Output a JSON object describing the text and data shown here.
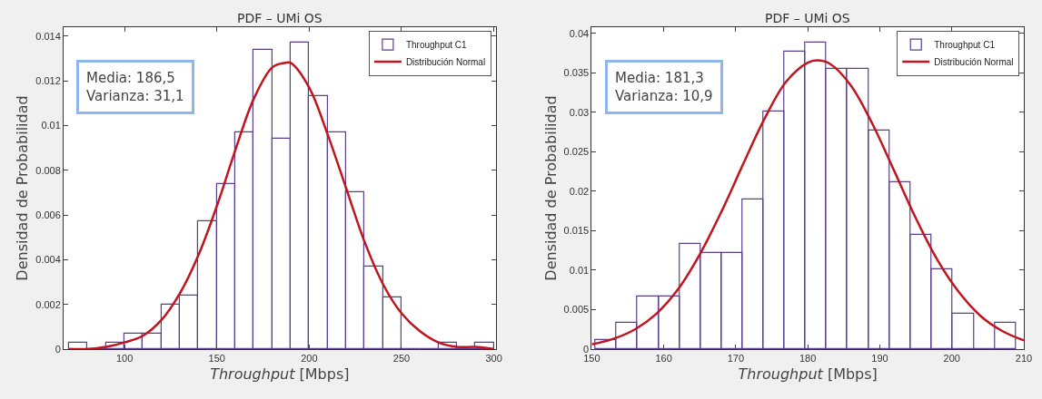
{
  "chart_data": [
    {
      "type": "histogram",
      "title": "PDF – UMi OS",
      "xlabel": "Throughput [Mbps]",
      "ylabel": "Densidad de Probabilidad",
      "annotations": [
        "Media: 186,5\nVarianza: 31,1"
      ],
      "xlim": [
        67,
        301
      ],
      "ylim": [
        0,
        0.0144
      ],
      "xticks": [
        100,
        150,
        200,
        250,
        300
      ],
      "yticks": [
        0,
        0.002,
        0.004,
        0.006,
        0.008,
        0.01,
        0.012,
        0.014
      ],
      "grid": false,
      "legend": "top right",
      "series": [
        {
          "name": "Throughput C1",
          "type": "histogram",
          "color": "#5b3f8f",
          "bins": [
            70,
            80,
            90,
            100,
            110,
            120,
            130,
            140,
            150,
            160,
            170,
            180,
            190,
            200,
            210,
            220,
            230,
            240,
            250,
            260,
            270,
            280,
            290,
            300
          ],
          "values": [
            0.0003,
            0,
            0.0003,
            0.0007,
            0.0007,
            0.002,
            0.0024,
            0.0057,
            0.0074,
            0.0097,
            0.0134,
            0.0094,
            0.0137,
            0.0113,
            0.0097,
            0.007,
            0.0037,
            0.0023,
            0,
            0,
            0.0003,
            0,
            0.0003
          ]
        },
        {
          "name": "Distribución Normal",
          "type": "line",
          "color": "#c0141e",
          "x": [
            70,
            80,
            90,
            100,
            110,
            120,
            130,
            140,
            150,
            160,
            170,
            180,
            186.5,
            190,
            200,
            210,
            220,
            230,
            240,
            250,
            260,
            270,
            280,
            290,
            300
          ],
          "values": [
            0.0,
            0.0,
            0.0001,
            0.0003,
            0.0006,
            0.0013,
            0.0025,
            0.0042,
            0.0064,
            0.0089,
            0.0112,
            0.0126,
            0.0128,
            0.0128,
            0.0117,
            0.0096,
            0.0072,
            0.0048,
            0.0029,
            0.0016,
            0.0008,
            0.0003,
            0.0001,
            0.0001,
            0.0
          ]
        }
      ]
    },
    {
      "type": "histogram",
      "title": "PDF – UMi OS",
      "xlabel": "Throughput [Mbps]",
      "ylabel": "Densidad de Probabilidad",
      "annotations": [
        "Media: 181,3\nVarianza: 10,9"
      ],
      "xlim": [
        150,
        210
      ],
      "ylim": [
        0,
        0.0408
      ],
      "xticks": [
        150,
        160,
        170,
        180,
        190,
        200,
        210
      ],
      "yticks": [
        0,
        0.005,
        0.01,
        0.015,
        0.02,
        0.025,
        0.03,
        0.035,
        0.04
      ],
      "grid": false,
      "legend": "top right",
      "series": [
        {
          "name": "Throughput C1",
          "type": "histogram",
          "color": "#5b3f8f",
          "bins": [
            150.5,
            153.4,
            156.3,
            159.3,
            162.2,
            165.1,
            168.0,
            170.9,
            173.9,
            176.8,
            179.7,
            182.6,
            185.5,
            188.5,
            191.4,
            194.3,
            197.2,
            200.1,
            203.1,
            206.0,
            208.9
          ],
          "values": [
            0.0011,
            0.0033,
            0.0067,
            0.0067,
            0.0133,
            0.0122,
            0.0122,
            0.019,
            0.0301,
            0.0377,
            0.0388,
            0.0355,
            0.0355,
            0.0277,
            0.0211,
            0.0145,
            0.0101,
            0.0045,
            0,
            0.0033
          ]
        },
        {
          "name": "Distribución Normal",
          "type": "line",
          "color": "#c0141e",
          "x": [
            150,
            153,
            156,
            159,
            162,
            165,
            168,
            171,
            174,
            177,
            180,
            181.3,
            183,
            186,
            189,
            192,
            195,
            198,
            201,
            204,
            207,
            210
          ],
          "values": [
            0.0006,
            0.0013,
            0.0025,
            0.0045,
            0.0076,
            0.012,
            0.0174,
            0.0234,
            0.0292,
            0.0339,
            0.0363,
            0.0366,
            0.0362,
            0.0334,
            0.0285,
            0.0226,
            0.0166,
            0.0113,
            0.0072,
            0.0042,
            0.0023,
            0.0011
          ]
        }
      ]
    }
  ]
}
